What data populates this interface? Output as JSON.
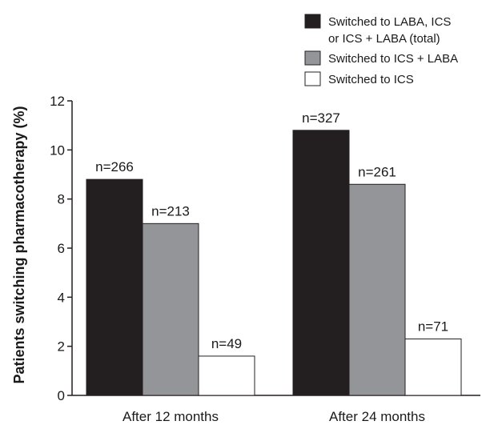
{
  "chart_data": {
    "type": "bar",
    "ylabel": "Patients switching pharmacotherapy (%)",
    "xlabel": "",
    "title": "",
    "ylim": [
      0,
      12
    ],
    "yticks": [
      0,
      2,
      4,
      6,
      8,
      10,
      12
    ],
    "grid": false,
    "legend_position": "top-right",
    "categories": [
      "After 12 months",
      "After 24 months"
    ],
    "series": [
      {
        "name": "Switched to LABA, ICS or ICS + LABA (total)",
        "legend_lines": [
          "Switched to LABA, ICS",
          "or ICS + LABA (total)"
        ],
        "color": "#231f20",
        "values": [
          8.8,
          10.8
        ],
        "labels": [
          "n=266",
          "n=327"
        ]
      },
      {
        "name": "Switched to ICS + LABA",
        "legend_lines": [
          "Switched to ICS + LABA"
        ],
        "color": "#939598",
        "values": [
          7.0,
          8.6
        ],
        "labels": [
          "n=213",
          "n=261"
        ]
      },
      {
        "name": "Switched to ICS",
        "legend_lines": [
          "Switched to ICS"
        ],
        "color": "#ffffff",
        "values": [
          1.6,
          2.3
        ],
        "labels": [
          "n=49",
          "n=71"
        ]
      }
    ]
  }
}
